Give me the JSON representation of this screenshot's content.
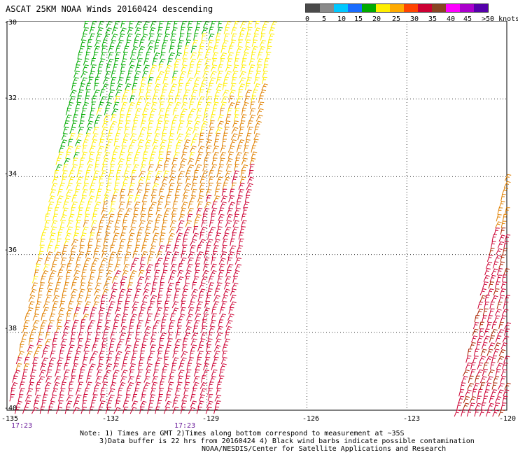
{
  "title": "ASCAT 25KM NOAA Winds 20160424 descending",
  "legend": {
    "labels": [
      "0",
      "5",
      "10",
      "15",
      "20",
      "25",
      "30",
      "35",
      "40",
      "45",
      ">50 knots"
    ],
    "colors": [
      "#4a4a4a",
      "#8a8a8a",
      "#00c8ff",
      "#1a6cff",
      "#00aa00",
      "#ffee00",
      "#ffaa00",
      "#ff4400",
      "#cc0033",
      "#884422",
      "#ff00ff",
      "#aa00cc",
      "#5500aa"
    ]
  },
  "axes": {
    "latitudes": [
      "-30",
      "-32",
      "-34",
      "-36",
      "-38",
      "-40"
    ],
    "longitudes": [
      "-135",
      "-132",
      "-129",
      "-126",
      "-123",
      "-120"
    ]
  },
  "times": [
    "17:23",
    "17:23"
  ],
  "note": {
    "line1": "Note: 1) Times are GMT 2)Times along bottom correspond to measurement at ~35S",
    "line2": "3)Data buffer is 22 hrs from 20160424 4) Black wind barbs indicate possible contamination",
    "line3": "NOAA/NESDIS/Center for Satellite Applications and Research"
  },
  "wind_colors": {
    "green": "#00aa00",
    "yellow": "#ffee00",
    "orange": "#e08000",
    "red": "#cc0033",
    "dark_red": "#aa2200"
  }
}
